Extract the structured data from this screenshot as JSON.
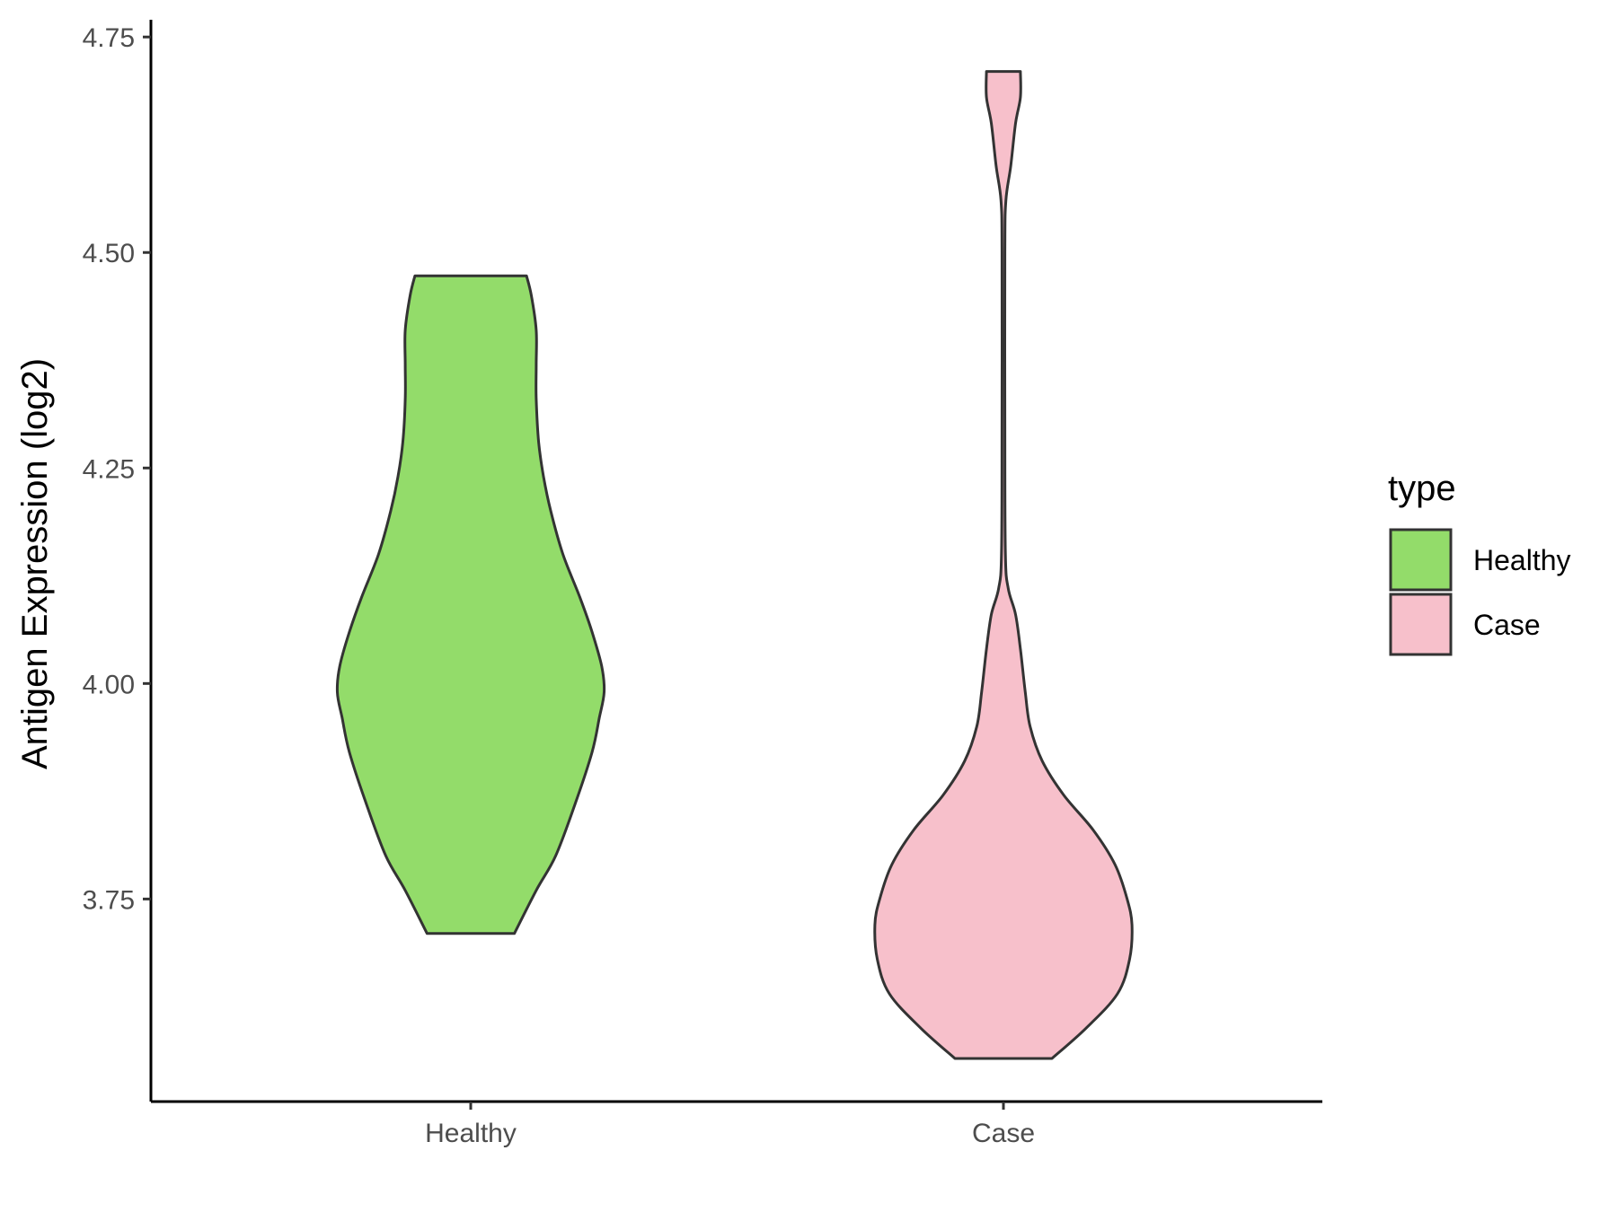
{
  "chart_data": {
    "type": "violin",
    "ylabel": "Antigen Expression (log2)",
    "xlabel": "",
    "categories": [
      "Healthy",
      "Case"
    ],
    "ylim": [
      3.515,
      4.77
    ],
    "yticks": [
      3.75,
      4.0,
      4.25,
      4.5,
      4.75
    ],
    "ytick_labels": [
      "3.75",
      "4.00",
      "4.25",
      "4.50",
      "4.75"
    ],
    "legend": {
      "title": "type",
      "placement": "right",
      "entries": [
        "Healthy",
        "Case"
      ]
    },
    "series": [
      {
        "name": "Healthy",
        "color": "#93DC6A",
        "min": 3.71,
        "max": 4.473,
        "density_profile": [
          [
            3.71,
            0.18
          ],
          [
            3.76,
            0.27
          ],
          [
            3.8,
            0.35
          ],
          [
            3.86,
            0.43
          ],
          [
            3.92,
            0.5
          ],
          [
            3.96,
            0.53
          ],
          [
            3.99,
            0.55
          ],
          [
            4.02,
            0.54
          ],
          [
            4.06,
            0.5
          ],
          [
            4.1,
            0.45
          ],
          [
            4.15,
            0.38
          ],
          [
            4.2,
            0.33
          ],
          [
            4.24,
            0.3
          ],
          [
            4.28,
            0.28
          ],
          [
            4.33,
            0.27
          ],
          [
            4.37,
            0.27
          ],
          [
            4.41,
            0.27
          ],
          [
            4.45,
            0.25
          ],
          [
            4.473,
            0.23
          ]
        ]
      },
      {
        "name": "Case",
        "color": "#F7C0CB",
        "min": 3.565,
        "max": 4.71,
        "density_profile": [
          [
            3.565,
            0.2
          ],
          [
            3.6,
            0.34
          ],
          [
            3.64,
            0.47
          ],
          [
            3.68,
            0.52
          ],
          [
            3.72,
            0.53
          ],
          [
            3.75,
            0.51
          ],
          [
            3.79,
            0.46
          ],
          [
            3.83,
            0.37
          ],
          [
            3.87,
            0.25
          ],
          [
            3.91,
            0.16
          ],
          [
            3.95,
            0.11
          ],
          [
            3.99,
            0.09
          ],
          [
            4.04,
            0.07
          ],
          [
            4.08,
            0.05
          ],
          [
            4.11,
            0.02
          ],
          [
            4.15,
            0.008
          ],
          [
            4.3,
            0.006
          ],
          [
            4.5,
            0.006
          ],
          [
            4.56,
            0.01
          ],
          [
            4.6,
            0.03
          ],
          [
            4.65,
            0.05
          ],
          [
            4.68,
            0.07
          ],
          [
            4.71,
            0.07
          ]
        ]
      }
    ],
    "grid": false
  }
}
